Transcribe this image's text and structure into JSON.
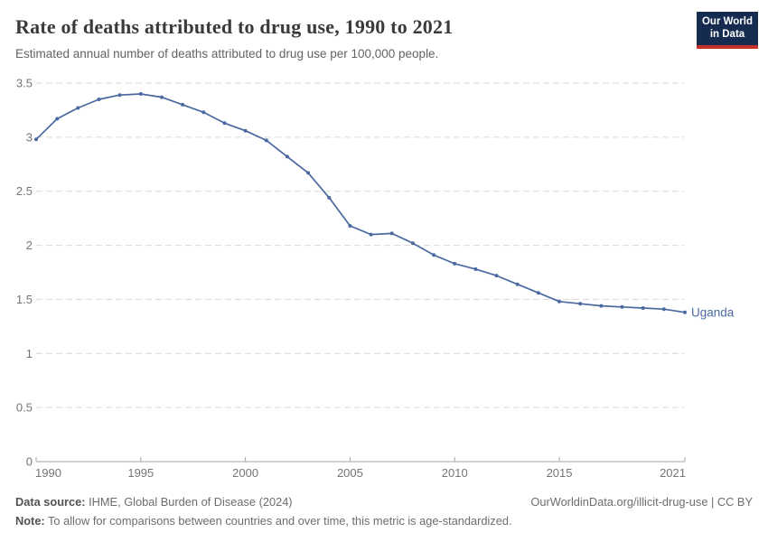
{
  "header": {
    "title": "Rate of deaths attributed to drug use, 1990 to 2021",
    "subtitle": "Estimated annual number of deaths attributed to drug use per 100,000 people.",
    "logo_line1": "Our World",
    "logo_line2": "in Data"
  },
  "colors": {
    "line": "#4a69a0",
    "entity_label": "#4a69a0",
    "logo_navy": "#152b4f",
    "logo_red": "#c5312b",
    "gridline": "#dadada",
    "axis": "#a5a5a5",
    "tick_label": "#757575"
  },
  "chart_data": {
    "type": "line",
    "title": "Rate of deaths attributed to drug use, 1990 to 2021",
    "subtitle": "Estimated annual number of deaths attributed to drug use per 100,000 people.",
    "x": [
      1990,
      1991,
      1992,
      1993,
      1994,
      1995,
      1996,
      1997,
      1998,
      1999,
      2000,
      2001,
      2002,
      2003,
      2004,
      2005,
      2006,
      2007,
      2008,
      2009,
      2010,
      2011,
      2012,
      2013,
      2014,
      2015,
      2016,
      2017,
      2018,
      2019,
      2020,
      2021
    ],
    "series": [
      {
        "name": "Uganda",
        "values": [
          2.98,
          3.17,
          3.27,
          3.35,
          3.39,
          3.4,
          3.37,
          3.3,
          3.23,
          3.13,
          3.06,
          2.97,
          2.82,
          2.67,
          2.44,
          2.18,
          2.1,
          2.11,
          2.02,
          1.91,
          1.83,
          1.78,
          1.72,
          1.64,
          1.56,
          1.48,
          1.46,
          1.44,
          1.43,
          1.42,
          1.41,
          1.38
        ]
      }
    ],
    "xlabel": "",
    "ylabel": "",
    "xlim": [
      1990,
      2021
    ],
    "ylim": [
      0,
      3.5
    ],
    "xticks": [
      1990,
      1995,
      2000,
      2005,
      2010,
      2015,
      2021
    ],
    "yticks": [
      0,
      0.5,
      1,
      1.5,
      2,
      2.5,
      3,
      3.5
    ],
    "grid": "horizontal-dashed",
    "legend": "end-of-line-label",
    "end_label": "Uganda"
  },
  "footer": {
    "source_label": "Data source:",
    "source_value": "IHME, Global Burden of Disease (2024)",
    "credit": "OurWorldinData.org/illicit-drug-use | CC BY",
    "note_label": "Note:",
    "note_value": "To allow for comparisons between countries and over time, this metric is age-standardized."
  }
}
